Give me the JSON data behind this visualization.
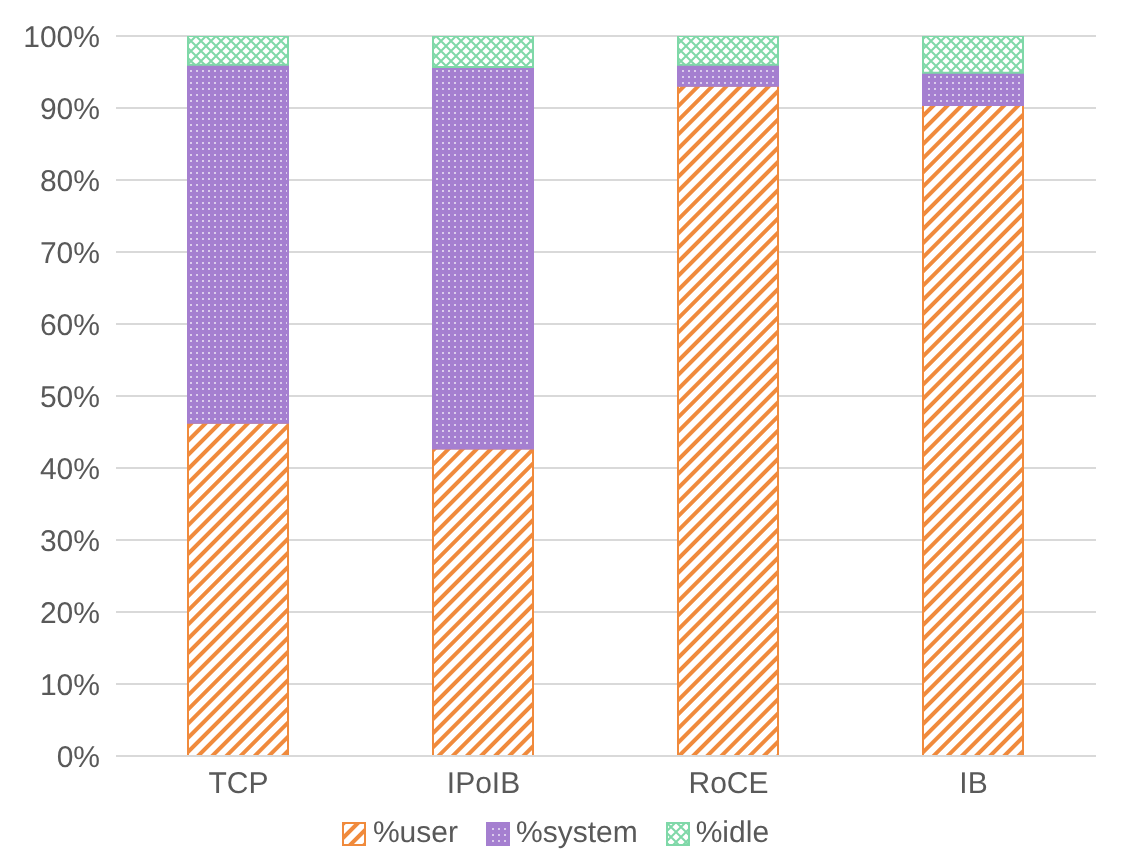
{
  "chart_data": {
    "type": "bar",
    "stacked": true,
    "categories": [
      "TCP",
      "IPoIB",
      "RoCE",
      "IB"
    ],
    "series": [
      {
        "name": "%user",
        "color": "#f08a3c",
        "values": [
          46.3,
          42.7,
          93.1,
          90.4
        ]
      },
      {
        "name": "%system",
        "color": "#a57fd0",
        "values": [
          49.7,
          53.0,
          2.9,
          4.5
        ]
      },
      {
        "name": "%idle",
        "color": "#7fd8a8",
        "values": [
          4.0,
          4.3,
          4.0,
          5.1
        ]
      }
    ],
    "ylim": [
      0,
      100
    ],
    "yticks": [
      {
        "value": 0,
        "label": "0%"
      },
      {
        "value": 10,
        "label": "10%"
      },
      {
        "value": 20,
        "label": "20%"
      },
      {
        "value": 30,
        "label": "30%"
      },
      {
        "value": 40,
        "label": "40%"
      },
      {
        "value": 50,
        "label": "50%"
      },
      {
        "value": 60,
        "label": "60%"
      },
      {
        "value": 70,
        "label": "70%"
      },
      {
        "value": 80,
        "label": "80%"
      },
      {
        "value": 90,
        "label": "90%"
      },
      {
        "value": 100,
        "label": "100%"
      }
    ],
    "grid": "y",
    "legend": "bottom"
  }
}
